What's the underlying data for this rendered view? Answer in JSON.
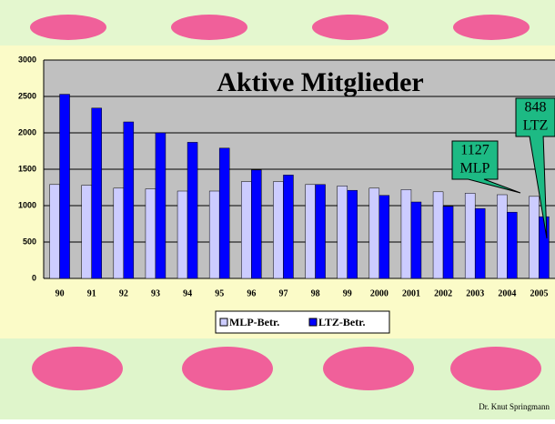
{
  "chart_data": {
    "type": "bar",
    "title": "Aktive Mitglieder",
    "categories": [
      "90",
      "91",
      "92",
      "93",
      "94",
      "95",
      "96",
      "97",
      "98",
      "99",
      "2000",
      "2001",
      "2002",
      "2003",
      "2004",
      "2005"
    ],
    "series": [
      {
        "name": "MLP-Betr.",
        "color": "#ccccff",
        "values": [
          1290,
          1280,
          1240,
          1230,
          1200,
          1200,
          1330,
          1330,
          1290,
          1270,
          1240,
          1220,
          1190,
          1170,
          1150,
          1127
        ]
      },
      {
        "name": "LTZ-Betr.",
        "color": "#0000ff",
        "values": [
          2530,
          2340,
          2150,
          2000,
          1870,
          1790,
          1490,
          1420,
          1290,
          1210,
          1140,
          1050,
          990,
          960,
          910,
          848
        ]
      }
    ],
    "ylim": [
      0,
      3000
    ],
    "yticks": [
      0,
      500,
      1000,
      1500,
      2000,
      2500,
      3000
    ],
    "grid": true,
    "annotations": [
      {
        "lines": [
          "1127",
          "MLP"
        ]
      },
      {
        "lines": [
          "848",
          "LTZ"
        ]
      }
    ],
    "footer": "Dr. Knut Springmann"
  }
}
